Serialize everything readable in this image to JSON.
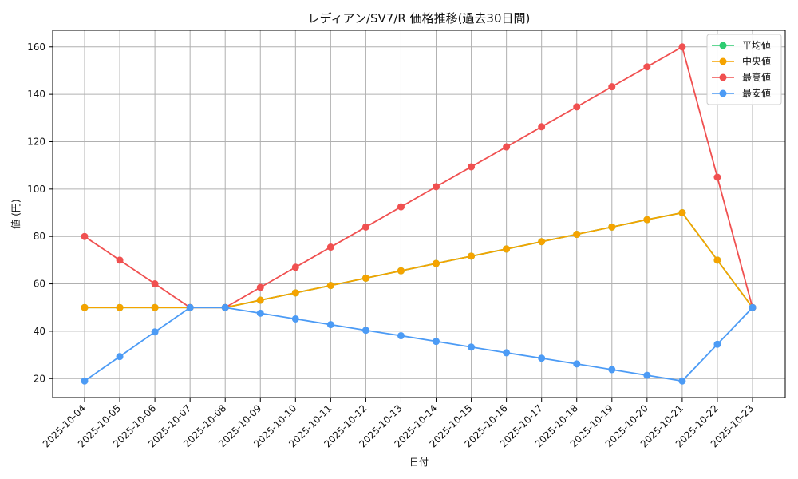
{
  "chart_data": {
    "type": "line",
    "title": "レディアン/SV7/R 価格推移(過去30日間)",
    "xlabel": "日付",
    "ylabel": "値 (円)",
    "ylim": [
      12,
      167
    ],
    "yticks": [
      20,
      40,
      60,
      80,
      100,
      120,
      140,
      160
    ],
    "grid": true,
    "legend_position": "top-right",
    "categories": [
      "2025-10-04",
      "2025-10-05",
      "2025-10-06",
      "2025-10-07",
      "2025-10-08",
      "2025-10-09",
      "2025-10-10",
      "2025-10-11",
      "2025-10-12",
      "2025-10-13",
      "2025-10-14",
      "2025-10-15",
      "2025-10-16",
      "2025-10-17",
      "2025-10-18",
      "2025-10-19",
      "2025-10-20",
      "2025-10-21",
      "2025-10-22",
      "2025-10-23"
    ],
    "series": [
      {
        "name": "平均値",
        "color": "#2ecc71",
        "values": [
          50,
          50,
          50,
          50,
          50,
          53.1,
          56.2,
          59.3,
          62.4,
          65.5,
          68.6,
          71.7,
          74.7,
          77.8,
          80.9,
          84.0,
          87.1,
          90,
          70,
          50
        ]
      },
      {
        "name": "中央値",
        "color": "#f5a300",
        "values": [
          50,
          50,
          50,
          50,
          50,
          53.1,
          56.2,
          59.3,
          62.4,
          65.5,
          68.6,
          71.7,
          74.7,
          77.8,
          80.9,
          84.0,
          87.1,
          90,
          70,
          50
        ]
      },
      {
        "name": "最高値",
        "color": "#f05050",
        "values": [
          80,
          70,
          60,
          50,
          50,
          58.5,
          67,
          75.5,
          84,
          92.5,
          101,
          109.4,
          117.8,
          126.3,
          134.7,
          143.2,
          151.6,
          160,
          105,
          50
        ]
      },
      {
        "name": "最安値",
        "color": "#4c9bf5",
        "values": [
          19,
          29.3,
          39.7,
          50,
          50,
          47.6,
          45.2,
          42.8,
          40.4,
          38.1,
          35.7,
          33.3,
          30.9,
          28.6,
          26.2,
          23.8,
          21.4,
          19,
          34.5,
          50
        ]
      }
    ]
  }
}
